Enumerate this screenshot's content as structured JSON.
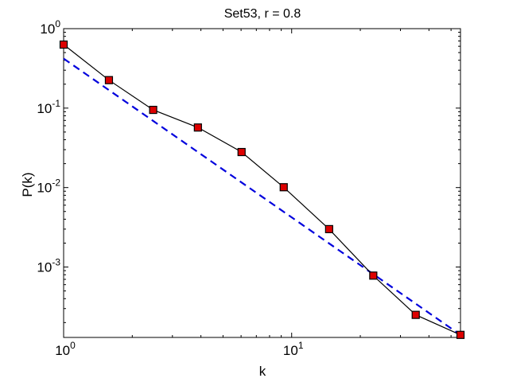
{
  "chart_data": {
    "type": "line",
    "title": "Set53, r = 0.8",
    "xlabel": "k",
    "ylabel": "P(k)",
    "xscale": "log",
    "yscale": "log",
    "xlim": [
      1,
      55
    ],
    "ylim": [
      0.00013,
      1
    ],
    "grid": false,
    "legend": "none",
    "x_ticks": [
      {
        "value": 1,
        "base": "10",
        "exp": "0"
      },
      {
        "value": 10,
        "base": "10",
        "exp": "1"
      }
    ],
    "y_ticks": [
      {
        "value": 1,
        "base": "10",
        "exp": "0"
      },
      {
        "value": 0.1,
        "base": "10",
        "exp": "-1"
      },
      {
        "value": 0.01,
        "base": "10",
        "exp": "-2"
      },
      {
        "value": 0.001,
        "base": "10",
        "exp": "-3"
      }
    ],
    "series": [
      {
        "style": "solid-markers",
        "color": "#000000",
        "marker_color": "#dd0000",
        "x": [
          1,
          1.58,
          2.47,
          3.88,
          6.03,
          9.23,
          14.6,
          22.8,
          35.0,
          55.0
        ],
        "y": [
          0.63,
          0.225,
          0.095,
          0.057,
          0.028,
          0.0101,
          0.003,
          0.00078,
          0.00025,
          0.00014
        ]
      },
      {
        "style": "dashed",
        "color": "#0000dd",
        "x": [
          1,
          55
        ],
        "y": [
          0.42,
          0.00014
        ]
      }
    ]
  }
}
